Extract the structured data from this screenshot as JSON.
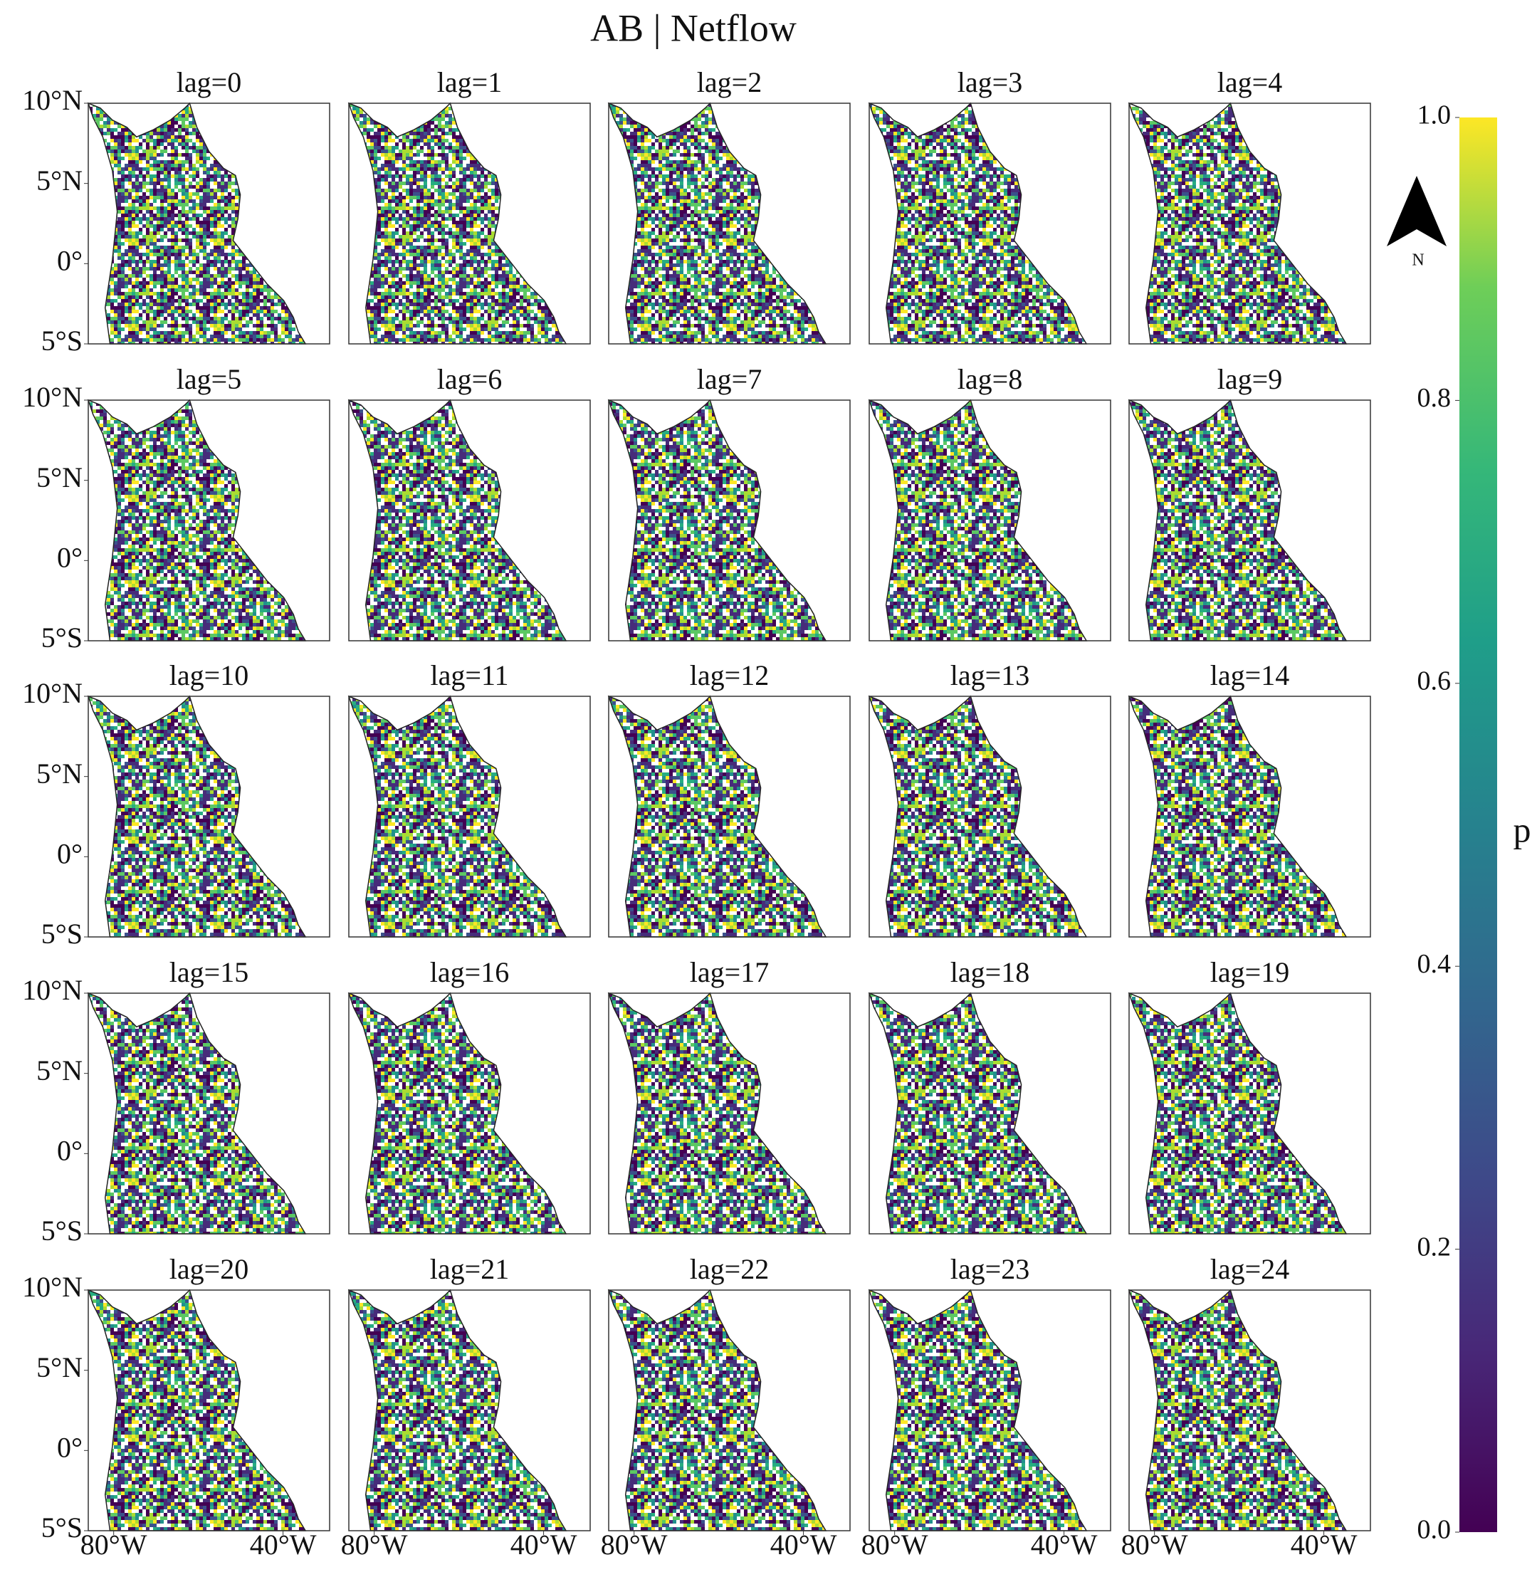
{
  "map": {
    "title": "AB | Netflow",
    "panels": [
      "lag=0",
      "lag=1",
      "lag=2",
      "lag=3",
      "lag=4",
      "lag=5",
      "lag=6",
      "lag=7",
      "lag=8",
      "lag=9",
      "lag=10",
      "lag=11",
      "lag=12",
      "lag=13",
      "lag=14",
      "lag=15",
      "lag=16",
      "lag=17",
      "lag=18",
      "lag=19",
      "lag=20",
      "lag=21",
      "lag=22",
      "lag=23",
      "lag=24"
    ],
    "columns": 5,
    "latlim": [
      -5,
      10
    ],
    "lonlim": [
      -86,
      -29
    ],
    "lat_ticks": [
      {
        "value": 10,
        "label": "10°N"
      },
      {
        "value": 5,
        "label": "5°N"
      },
      {
        "value": 0,
        "label": "0°"
      },
      {
        "value": -5,
        "label": "5°S"
      }
    ],
    "lon_ticks": [
      {
        "value": -80,
        "label": "80°W"
      },
      {
        "value": -40,
        "label": "40°W"
      }
    ],
    "colorbar": {
      "label": "p",
      "colormap": "viridis",
      "lim": [
        0,
        1
      ],
      "ticks": [
        {
          "value": 0,
          "label": "0.0"
        },
        0.2,
        0.4,
        0.6,
        0.8,
        {
          "value": 1,
          "label": "1.0"
        }
      ]
    },
    "north_arrow": "N"
  }
}
